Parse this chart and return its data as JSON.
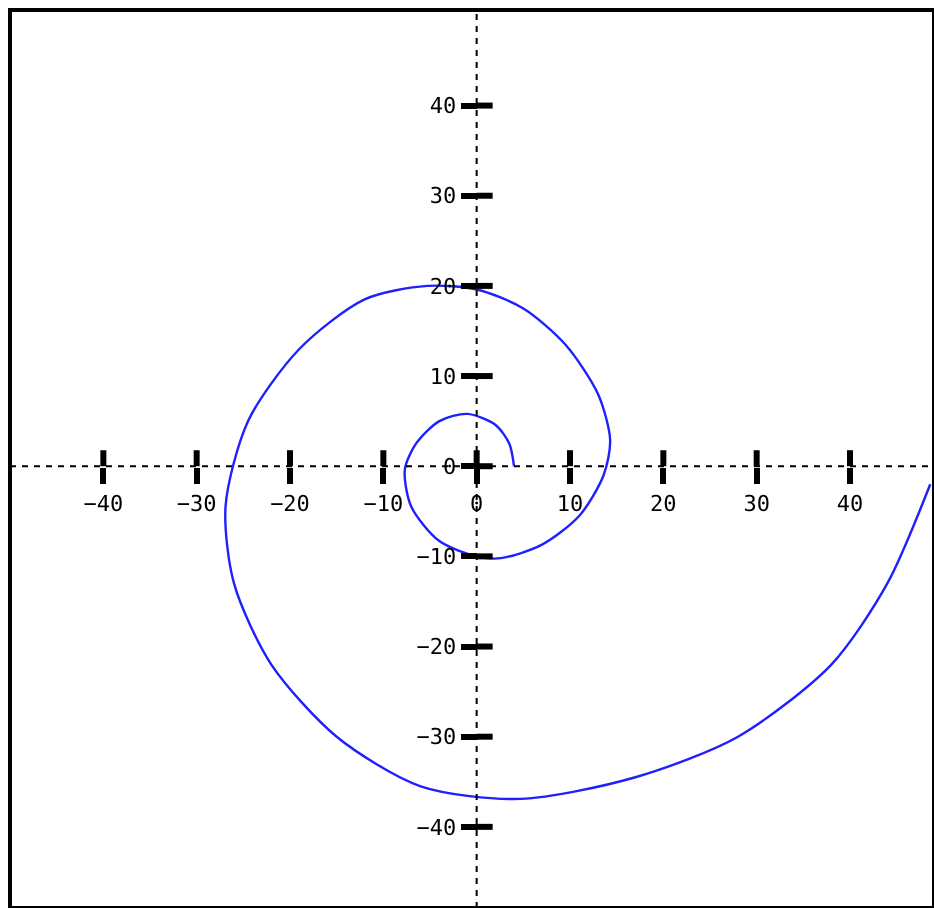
{
  "chart_data": {
    "type": "line",
    "series": [
      {
        "color": "#1f1fff",
        "x": [
          4,
          3.5,
          2,
          -1,
          -4,
          -6.5,
          -7.7,
          -7,
          -4,
          0,
          2.6,
          7,
          11,
          13.6,
          14.3,
          13,
          9.5,
          5,
          0,
          -5.3,
          -12,
          -19,
          -24.5,
          -26.9,
          -26,
          -22,
          -15,
          -6,
          4.7,
          17,
          28,
          38,
          44,
          48.6
        ],
        "values": [
          0,
          2.5,
          4.6,
          5.8,
          5,
          2.5,
          -0.4,
          -4.5,
          -8.3,
          -10,
          -10.2,
          -8.7,
          -5.5,
          -1,
          2.9,
          8,
          13.5,
          17.5,
          19.6,
          20,
          18.5,
          13,
          5,
          -4.4,
          -13,
          -22,
          -30,
          -35.5,
          -36.9,
          -34.5,
          -30,
          -22,
          -13,
          -2
        ]
      }
    ],
    "xlim": [
      -50,
      49
    ],
    "ylim": [
      -49,
      50.6
    ],
    "xticks": [
      -40,
      -30,
      -20,
      -10,
      0,
      10,
      20,
      30,
      40
    ],
    "yticks": [
      -40,
      -30,
      -20,
      -10,
      0,
      10,
      20,
      30,
      40
    ],
    "marker": "none",
    "line_style": "solid"
  }
}
